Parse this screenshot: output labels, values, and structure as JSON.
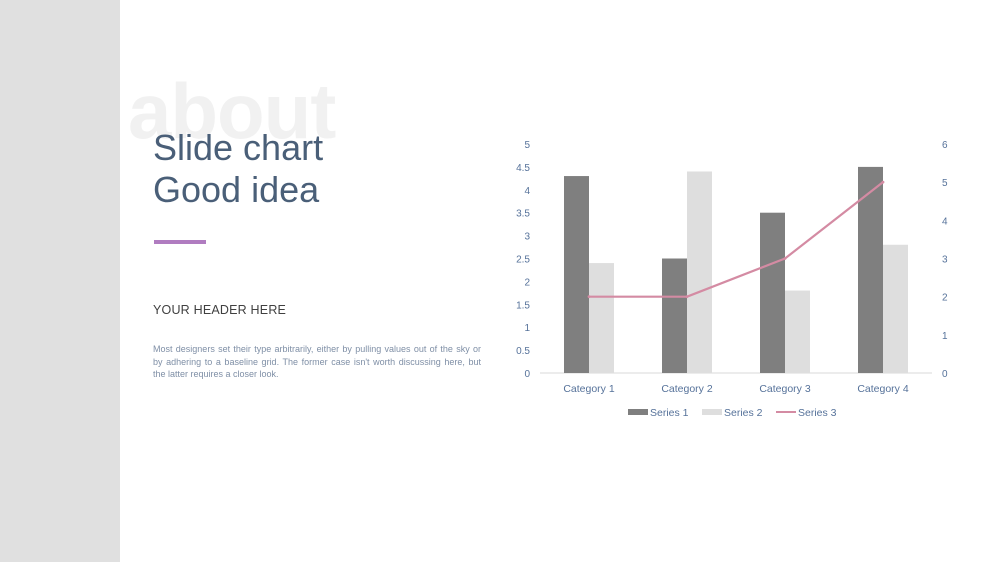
{
  "slide": {
    "watermark": "about",
    "title_line1": "Slide chart",
    "title_line2": "Good idea",
    "subheader": "YOUR HEADER HERE",
    "body": "Most designers set their type arbitrarily, either by pulling values out of the sky or by adhering to a baseline grid. The former case isn't worth discussing here, but the latter requires a closer look.",
    "accent_color": "#b07cc0",
    "band_color": "#e0e0e0"
  },
  "chart_data": {
    "type": "bar",
    "categories": [
      "Category 1",
      "Category 2",
      "Category 3",
      "Category 4"
    ],
    "series": [
      {
        "name": "Series 1",
        "type": "bar",
        "axis": "left",
        "color": "#7f7f7f",
        "values": [
          4.3,
          2.5,
          3.5,
          4.5
        ]
      },
      {
        "name": "Series 2",
        "type": "bar",
        "axis": "left",
        "color": "#dedede",
        "values": [
          2.4,
          4.4,
          1.8,
          2.8
        ]
      },
      {
        "name": "Series 3",
        "type": "line",
        "axis": "right",
        "color": "#d48ba3",
        "values": [
          2,
          2,
          3,
          5
        ]
      }
    ],
    "y_left": {
      "min": 0,
      "max": 5,
      "ticks": [
        "0",
        "0.5",
        "1",
        "1.5",
        "2",
        "2.5",
        "3",
        "3.5",
        "4",
        "4.5",
        "5"
      ]
    },
    "y_right": {
      "min": 0,
      "max": 6,
      "ticks": [
        "0",
        "1",
        "2",
        "3",
        "4",
        "5",
        "6"
      ]
    },
    "legend_position": "bottom",
    "grid": false
  }
}
